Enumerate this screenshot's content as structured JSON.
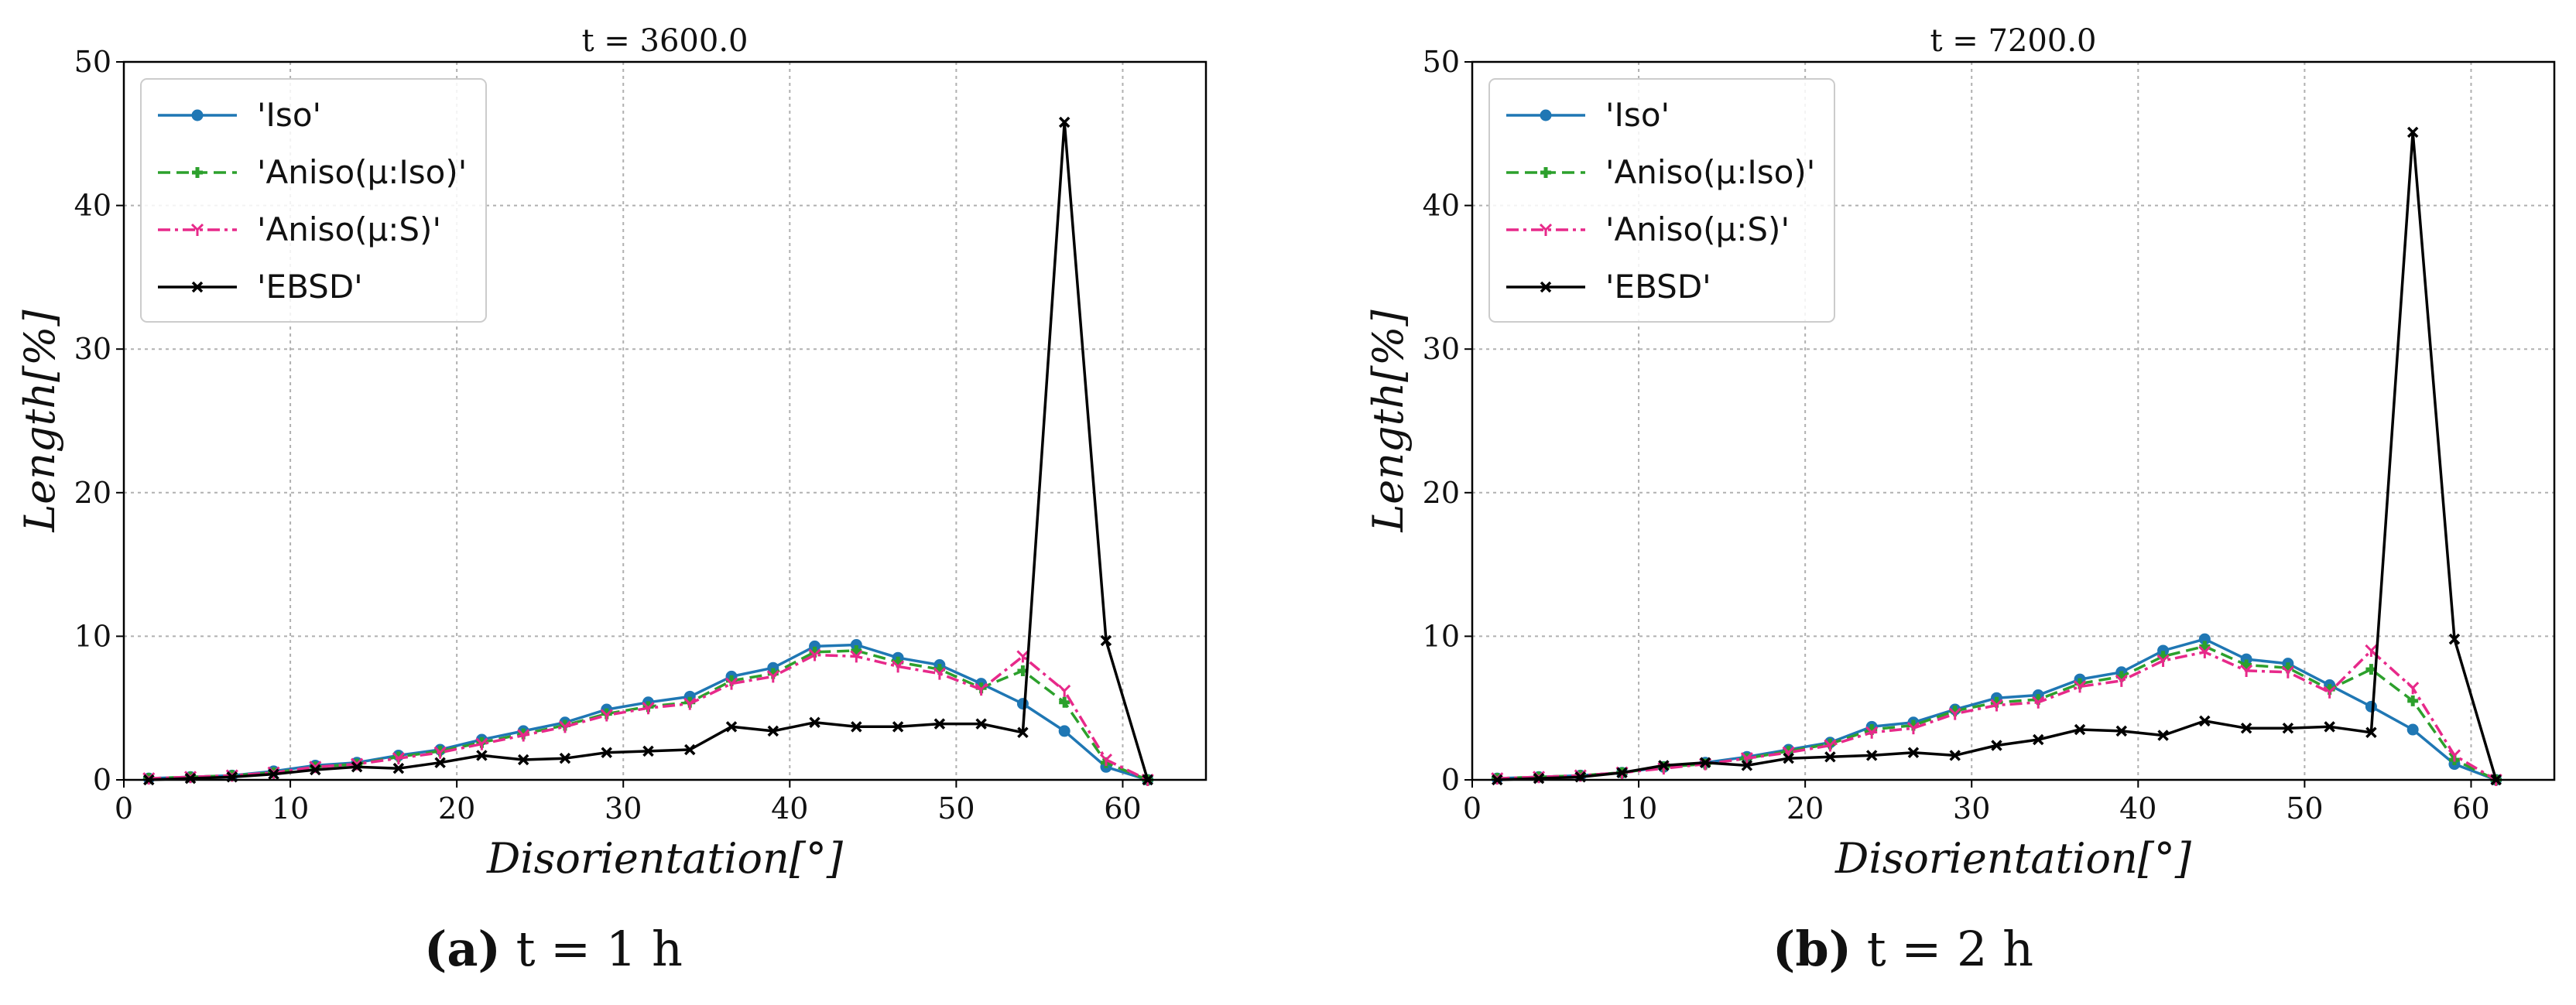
{
  "chart_data": [
    {
      "type": "line",
      "title": "t = 3600.0",
      "xlabel": "Disorientation[°]",
      "ylabel": "Length[%]",
      "xlim": [
        0,
        65
      ],
      "ylim": [
        0,
        50
      ],
      "x_ticks": [
        "0",
        "10",
        "20",
        "30",
        "40",
        "50",
        "60"
      ],
      "y_ticks": [
        "0",
        "10",
        "20",
        "30",
        "40",
        "50"
      ],
      "grid": true,
      "legend_position": "top-left",
      "x": [
        1.5,
        4,
        6.5,
        9,
        11.5,
        14,
        16.5,
        19,
        21.5,
        24,
        26.5,
        29,
        31.5,
        34,
        36.5,
        39,
        41.5,
        44,
        46.5,
        49,
        51.5,
        54,
        56.5,
        59,
        61.5
      ],
      "series": [
        {
          "name": "'Iso'",
          "color": "#1f77b4",
          "style": "solid",
          "marker": "circle",
          "values": [
            0.1,
            0.2,
            0.3,
            0.6,
            1.0,
            1.2,
            1.7,
            2.1,
            2.8,
            3.4,
            4.0,
            4.9,
            5.4,
            5.8,
            7.2,
            7.8,
            9.3,
            9.4,
            8.5,
            8.0,
            6.7,
            5.3,
            3.4,
            0.9,
            0.0
          ]
        },
        {
          "name": "'Aniso(μ:Iso)'",
          "color": "#2ca02c",
          "style": "dashed",
          "marker": "plus",
          "values": [
            0.1,
            0.2,
            0.3,
            0.5,
            0.9,
            1.1,
            1.6,
            2.0,
            2.6,
            3.2,
            3.8,
            4.6,
            5.1,
            5.4,
            6.9,
            7.4,
            8.9,
            9.0,
            8.2,
            7.7,
            6.4,
            7.6,
            5.4,
            1.2,
            0.0
          ]
        },
        {
          "name": "'Aniso(μ:S)'",
          "color": "#e7298a",
          "style": "dashdot",
          "marker": "tri_down",
          "values": [
            0.1,
            0.2,
            0.3,
            0.5,
            0.9,
            1.1,
            1.5,
            1.9,
            2.5,
            3.1,
            3.7,
            4.5,
            5.0,
            5.3,
            6.7,
            7.2,
            8.7,
            8.6,
            7.9,
            7.4,
            6.3,
            8.6,
            6.2,
            1.4,
            0.0
          ]
        },
        {
          "name": "'EBSD'",
          "color": "#000000",
          "style": "solid",
          "marker": "x",
          "values": [
            0.0,
            0.1,
            0.2,
            0.4,
            0.7,
            0.9,
            0.8,
            1.2,
            1.7,
            1.4,
            1.5,
            1.9,
            2.0,
            2.1,
            3.7,
            3.4,
            4.0,
            3.7,
            3.7,
            3.9,
            3.9,
            3.3,
            45.8,
            9.7,
            0.0
          ]
        }
      ]
    },
    {
      "type": "line",
      "title": "t = 7200.0",
      "xlabel": "Disorientation[°]",
      "ylabel": "Length[%]",
      "xlim": [
        0,
        65
      ],
      "ylim": [
        0,
        50
      ],
      "x_ticks": [
        "0",
        "10",
        "20",
        "30",
        "40",
        "50",
        "60"
      ],
      "y_ticks": [
        "0",
        "10",
        "20",
        "30",
        "40",
        "50"
      ],
      "grid": true,
      "legend_position": "top-left",
      "x": [
        1.5,
        4,
        6.5,
        9,
        11.5,
        14,
        16.5,
        19,
        21.5,
        24,
        26.5,
        29,
        31.5,
        34,
        36.5,
        39,
        41.5,
        44,
        46.5,
        49,
        51.5,
        54,
        56.5,
        59,
        61.5
      ],
      "series": [
        {
          "name": "'Iso'",
          "color": "#1f77b4",
          "style": "solid",
          "marker": "circle",
          "values": [
            0.1,
            0.2,
            0.3,
            0.5,
            0.9,
            1.2,
            1.6,
            2.1,
            2.6,
            3.7,
            4.0,
            4.9,
            5.7,
            5.9,
            7.0,
            7.5,
            9.0,
            9.8,
            8.4,
            8.1,
            6.6,
            5.1,
            3.5,
            1.1,
            0.0
          ]
        },
        {
          "name": "'Aniso(μ:Iso)'",
          "color": "#2ca02c",
          "style": "dashed",
          "marker": "plus",
          "values": [
            0.1,
            0.2,
            0.3,
            0.5,
            0.9,
            1.1,
            1.5,
            2.0,
            2.5,
            3.5,
            3.8,
            4.8,
            5.4,
            5.6,
            6.7,
            7.2,
            8.6,
            9.3,
            8.0,
            7.8,
            6.3,
            7.7,
            5.5,
            1.4,
            0.0
          ]
        },
        {
          "name": "'Aniso(μ:S)'",
          "color": "#e7298a",
          "style": "dashdot",
          "marker": "tri_down",
          "values": [
            0.1,
            0.2,
            0.3,
            0.5,
            0.8,
            1.1,
            1.5,
            1.9,
            2.4,
            3.3,
            3.6,
            4.6,
            5.2,
            5.4,
            6.5,
            6.9,
            8.3,
            8.9,
            7.6,
            7.5,
            6.1,
            9.0,
            6.4,
            1.7,
            0.0
          ]
        },
        {
          "name": "'EBSD'",
          "color": "#000000",
          "style": "solid",
          "marker": "x",
          "values": [
            0.0,
            0.1,
            0.2,
            0.5,
            1.0,
            1.2,
            1.0,
            1.5,
            1.6,
            1.7,
            1.9,
            1.7,
            2.4,
            2.8,
            3.5,
            3.4,
            3.1,
            4.1,
            3.6,
            3.6,
            3.7,
            3.3,
            45.1,
            9.8,
            0.0
          ]
        }
      ]
    }
  ],
  "captions": [
    {
      "tag": "(a)",
      "text": "t = 1 h"
    },
    {
      "tag": "(b)",
      "text": "t = 2 h"
    }
  ]
}
